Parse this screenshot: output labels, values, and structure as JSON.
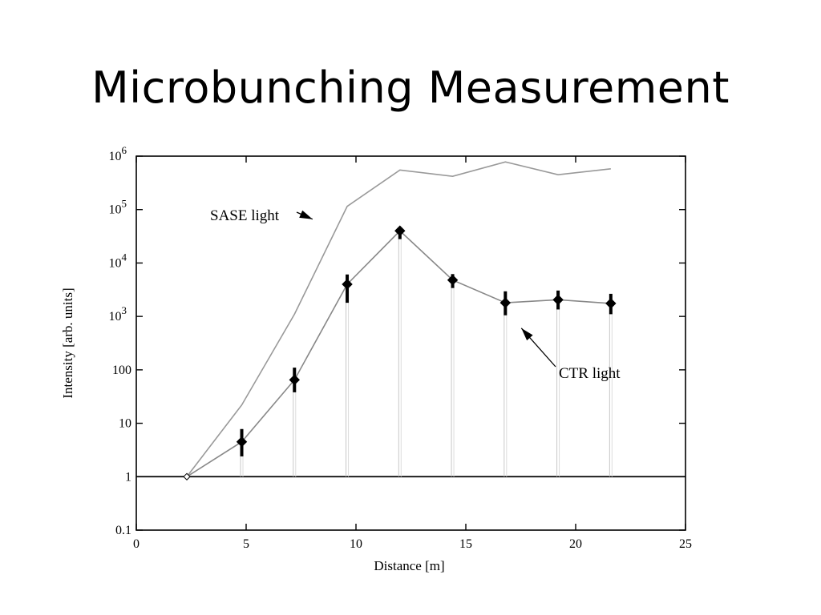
{
  "slide": {
    "title": "Microbunching Measurement"
  },
  "chart_data": {
    "type": "line",
    "title": "",
    "xlabel": "Distance [m]",
    "ylabel": "Intensity [arb. units]",
    "xlim": [
      0,
      25
    ],
    "ylim": [
      0.1,
      1000000
    ],
    "yscale": "log",
    "grid": false,
    "x_ticks": [
      0,
      5,
      10,
      15,
      20,
      25
    ],
    "y_ticks": [
      {
        "value": 0.1,
        "label": "0.1"
      },
      {
        "value": 1,
        "label": "1"
      },
      {
        "value": 10,
        "label": "10"
      },
      {
        "value": 100,
        "label": "100"
      },
      {
        "value": 1000,
        "label": "10",
        "exp": "3"
      },
      {
        "value": 10000,
        "label": "10",
        "exp": "4"
      },
      {
        "value": 100000,
        "label": "10",
        "exp": "5"
      },
      {
        "value": 1000000,
        "label": "10",
        "exp": "6"
      }
    ],
    "reference_line": {
      "y": 1
    },
    "series": [
      {
        "x": [
          2.3,
          4.8,
          7.2,
          9.6,
          12.0,
          14.4,
          16.8,
          19.2,
          21.6
        ],
        "y": [
          1,
          22,
          1100,
          115000,
          550000,
          420000,
          780000,
          450000,
          580000
        ],
        "color": "#999999"
      },
      {
        "x": [
          2.3,
          4.8,
          7.2,
          9.6,
          12.0,
          14.4,
          16.8,
          19.2,
          21.6
        ],
        "y": [
          1,
          4.5,
          65,
          4000,
          40000,
          4800,
          1800,
          2050,
          1750
        ],
        "error_low": [
          1,
          2.4,
          38,
          1800,
          28000,
          3400,
          1050,
          1350,
          1100
        ],
        "error_high": [
          1,
          7.8,
          110,
          6100,
          45000,
          6200,
          2950,
          3050,
          2650
        ],
        "color": "#888888",
        "marker": "diamond"
      }
    ],
    "annotations": [
      {
        "text": "SASE light",
        "target": [
          8.9,
          100000
        ]
      },
      {
        "text": "CTR light",
        "target": [
          17.2,
          1200
        ]
      }
    ]
  }
}
